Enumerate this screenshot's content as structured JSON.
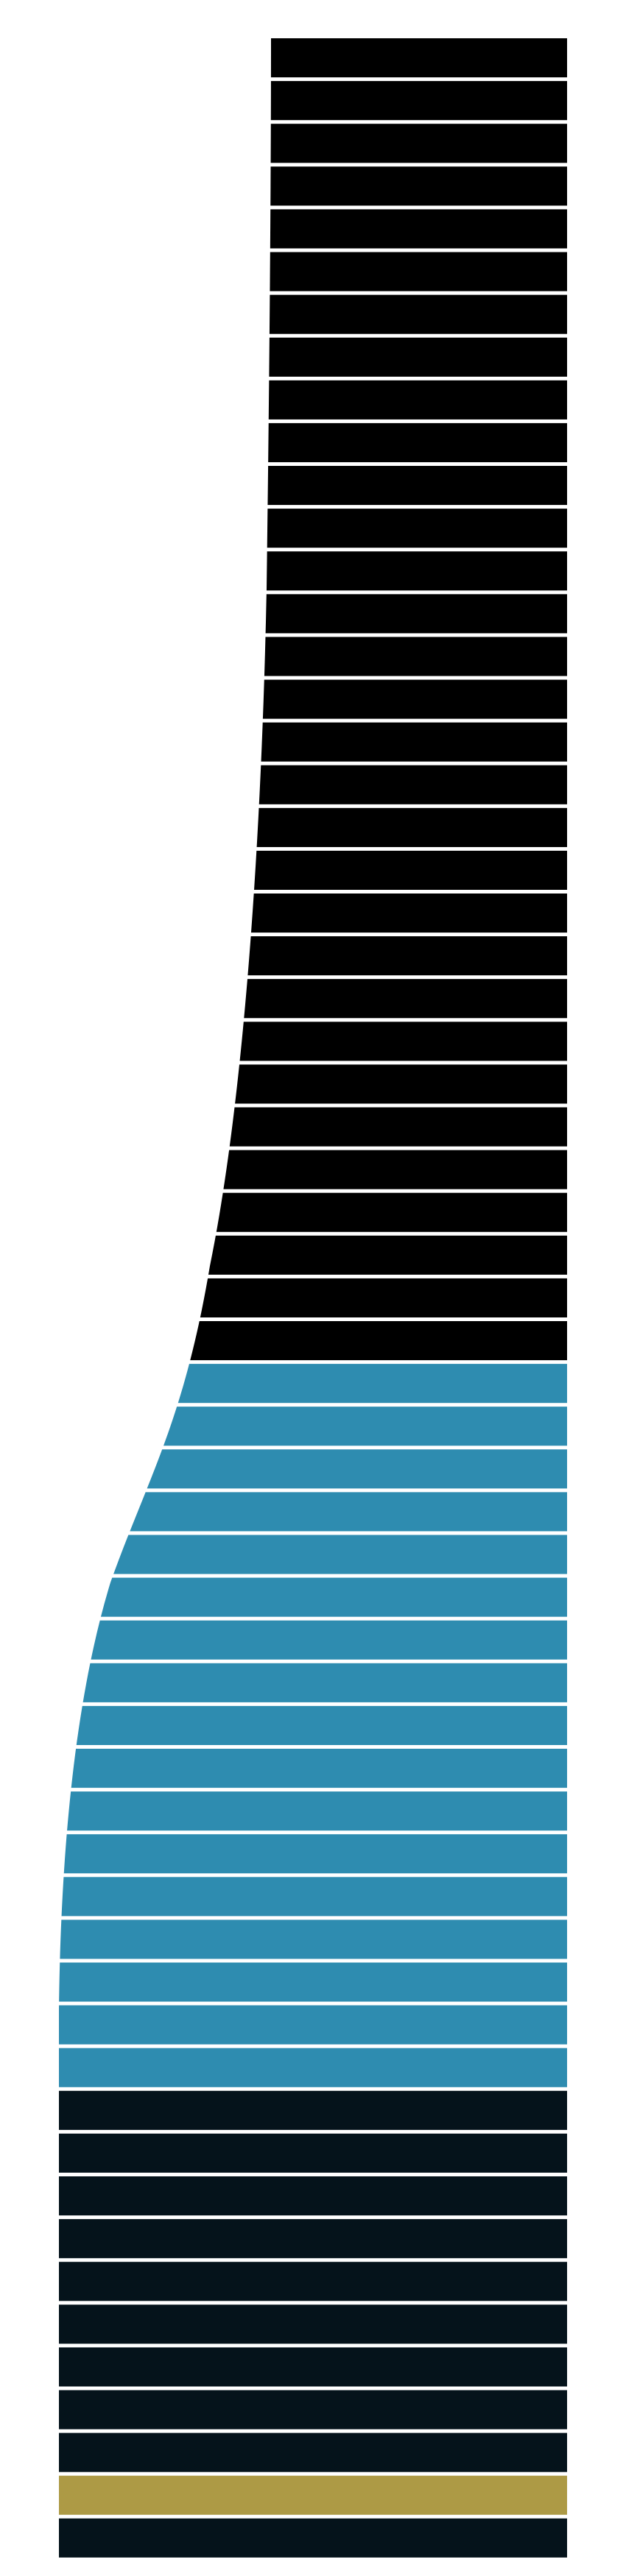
{
  "graphic": {
    "shape": "bottle-silhouette",
    "colors": {
      "background": "#ffffff",
      "neck": "#000000",
      "shoulder": "#2e8cb0",
      "body": "#05131b",
      "accent_band": "#ad9a45",
      "stripe_gap": "#ffffff"
    },
    "sections": [
      {
        "name": "neck",
        "color": "#000000",
        "bands": 31
      },
      {
        "name": "shoulder",
        "color": "#2e8cb0",
        "bands": 17
      },
      {
        "name": "body-upper",
        "color": "#05131b",
        "bands": 9
      },
      {
        "name": "accent",
        "color": "#ad9a45",
        "bands": 1
      },
      {
        "name": "body-lower",
        "color": "#05131b",
        "bands": 1
      }
    ]
  }
}
